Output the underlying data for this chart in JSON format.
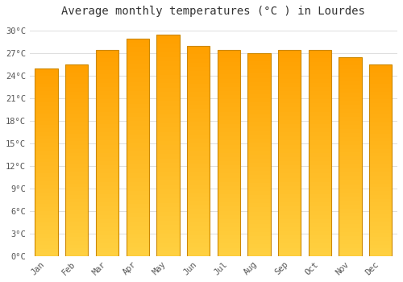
{
  "title": "Average monthly temperatures (°C ) in Lourdes",
  "months": [
    "Jan",
    "Feb",
    "Mar",
    "Apr",
    "May",
    "Jun",
    "Jul",
    "Aug",
    "Sep",
    "Oct",
    "Nov",
    "Dec"
  ],
  "values": [
    25.0,
    25.5,
    27.5,
    29.0,
    29.5,
    28.0,
    27.5,
    27.0,
    27.5,
    27.5,
    26.5,
    25.5
  ],
  "ylim": [
    0,
    31
  ],
  "yticks": [
    0,
    3,
    6,
    9,
    12,
    15,
    18,
    21,
    24,
    27,
    30
  ],
  "ytick_labels": [
    "0°C",
    "3°C",
    "6°C",
    "9°C",
    "12°C",
    "15°C",
    "18°C",
    "21°C",
    "24°C",
    "27°C",
    "30°C"
  ],
  "background_color": "#ffffff",
  "grid_color": "#dddddd",
  "title_fontsize": 10,
  "tick_fontsize": 7.5,
  "bar_color_bottom": "#FFD040",
  "bar_color_top": "#FFA000",
  "bar_edge_color": "#CC8800",
  "bar_width": 0.75
}
